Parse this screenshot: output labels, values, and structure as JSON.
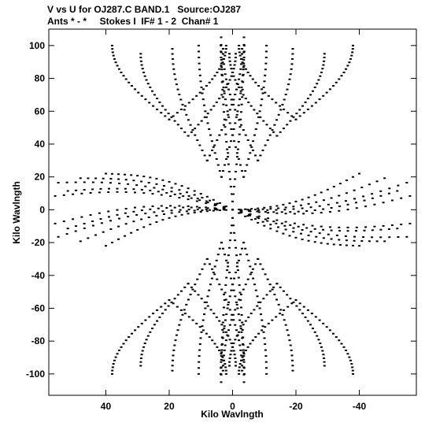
{
  "header": {
    "line1": "V vs U for OJ287.C BAND.1   Source:OJ287",
    "line2": "Ants * - *     Stokes I  IF# 1 - 2  Chan# 1"
  },
  "chart_data": {
    "type": "scatter",
    "title": "V vs U for OJ287.C BAND.1   Source:OJ287",
    "subtitle": "Ants * - *     Stokes I  IF# 1 - 2  Chan# 1",
    "xlabel": "Kilo Wavlngth",
    "ylabel": "Kilo Wavlngth",
    "xlim": [
      58,
      -58
    ],
    "ylim": [
      -113,
      110
    ],
    "x_ticks": [
      40,
      20,
      0,
      -20,
      -40
    ],
    "x_tick_labels": [
      "40",
      "20",
      "0",
      "-20",
      "-40"
    ],
    "y_ticks": [
      100,
      80,
      60,
      40,
      20,
      0,
      -20,
      -40,
      -60,
      -80,
      -100
    ],
    "y_tick_labels": [
      "100",
      "80",
      "60",
      "40",
      "20",
      "0",
      "-20",
      "-40",
      "-60",
      "-80",
      "-100"
    ],
    "grid": false,
    "color": "#000000",
    "tracks": [
      {
        "u0": 0.0,
        "v0": 5,
        "v1": 105,
        "du": 3.6
      },
      {
        "u0": 0.0,
        "v0": -5,
        "v1": -105,
        "du": -3.6
      },
      {
        "u0": 3.5,
        "v0": 20,
        "v1": 100,
        "du": 7.2
      },
      {
        "u0": 3.5,
        "v0": -20,
        "v1": -100,
        "du": -7.2
      },
      {
        "u0": -3.5,
        "v0": 20,
        "v1": 100,
        "du": 7.2
      },
      {
        "u0": -3.5,
        "v0": -20,
        "v1": -100,
        "du": -7.2
      },
      {
        "u0": 8,
        "v0": 30,
        "v1": 98,
        "du": 11
      },
      {
        "u0": 8,
        "v0": -30,
        "v1": -98,
        "du": -11
      },
      {
        "u0": -8,
        "v0": 30,
        "v1": 98,
        "du": 11
      },
      {
        "u0": -8,
        "v0": -30,
        "v1": -98,
        "du": -11
      },
      {
        "u0": 14,
        "v0": 45,
        "v1": 95,
        "du": 15
      },
      {
        "u0": 14,
        "v0": -45,
        "v1": -95,
        "du": -15
      },
      {
        "u0": -14,
        "v0": 45,
        "v1": 95,
        "du": 15
      },
      {
        "u0": -14,
        "v0": -45,
        "v1": -95,
        "du": -15
      },
      {
        "u0": 20,
        "v0": 55,
        "v1": 100,
        "du": 18
      },
      {
        "u0": 20,
        "v0": -55,
        "v1": -100,
        "du": -18
      },
      {
        "u0": -20,
        "v0": 55,
        "v1": 100,
        "du": 18
      },
      {
        "u0": -20,
        "v0": -55,
        "v1": -100,
        "du": -18
      }
    ],
    "arms": [
      {
        "k": 0.3,
        "umax": 55
      },
      {
        "k": -0.3,
        "umax": 55
      },
      {
        "k": 0.22,
        "umax": 52
      },
      {
        "k": -0.22,
        "umax": 52
      },
      {
        "k": 0.4,
        "umax": 48
      },
      {
        "k": -0.4,
        "umax": 48
      },
      {
        "k": 0.15,
        "umax": 56
      },
      {
        "k": -0.15,
        "umax": 56
      },
      {
        "k": 0.55,
        "umax": 40
      },
      {
        "k": -0.55,
        "umax": 40
      }
    ]
  }
}
